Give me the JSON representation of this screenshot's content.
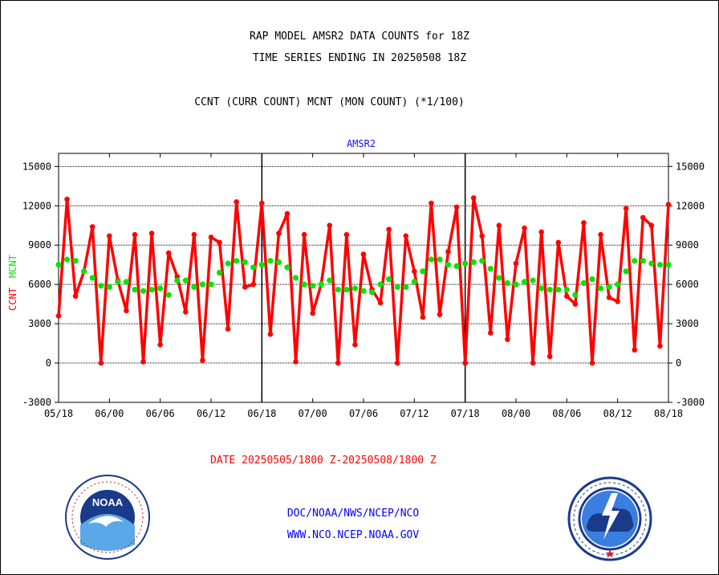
{
  "header": {
    "title_line1": "RAP MODEL AMSR2 DATA COUNTS for 18Z",
    "title_line2": "TIME SERIES ENDING IN 20250508 18Z",
    "subtitle": "CCNT (CURR COUNT) MCNT (MON COUNT) (*1/100)"
  },
  "date_range": "DATE 20250505/1800 Z-20250508/1800 Z",
  "footer": {
    "line1": "DOC/NOAA/NWS/NCEP/NCO",
    "line2": "WWW.NCO.NCEP.NOAA.GOV"
  },
  "logos": {
    "left": "noaa-logo",
    "right": "national-weather-service-logo"
  },
  "colors": {
    "ccnt": "#ff0000",
    "mcnt": "#00e600",
    "label": "#1010ff",
    "grid": "#000000"
  },
  "chart_data": {
    "type": "line",
    "title": "AMSR2",
    "ylabel_left": [
      "CCNT",
      "MCNT"
    ],
    "ylim": [
      -3000,
      16000
    ],
    "yticks": [
      -3000,
      0,
      3000,
      6000,
      9000,
      12000,
      15000
    ],
    "yticklabels": [
      "-3000",
      "0",
      "3000",
      "6000",
      "9000",
      "12000",
      "15000"
    ],
    "xlim": [
      0,
      72
    ],
    "xticks": [
      0,
      6,
      12,
      18,
      24,
      30,
      36,
      42,
      48,
      54,
      60,
      66,
      72
    ],
    "xticklabels": [
      "05/18",
      "06/00",
      "06/06",
      "06/12",
      "06/18",
      "07/00",
      "07/06",
      "07/12",
      "07/18",
      "08/00",
      "08/06",
      "08/12",
      "08/18"
    ],
    "day_separators": [
      24,
      48
    ],
    "grid": true,
    "series": [
      {
        "name": "CCNT",
        "color": "#ff0000",
        "values": [
          3600,
          12500,
          5100,
          7000,
          10400,
          0,
          9700,
          6300,
          4000,
          9800,
          100,
          9900,
          1400,
          8400,
          6600,
          3900,
          9800,
          200,
          9600,
          9200,
          2600,
          12300,
          5800,
          6000,
          12200,
          2200,
          9900,
          11400,
          100,
          9800,
          3800,
          6000,
          10500,
          0,
          9800,
          1400,
          8300,
          5600,
          4600,
          10200,
          0,
          9700,
          7000,
          3500,
          12200,
          3700,
          8500,
          11900,
          0,
          12600,
          9700,
          2300,
          10500,
          1800,
          7600,
          10300,
          0,
          10000,
          500,
          9200,
          5100,
          4500,
          10700,
          0,
          9800,
          5000,
          4700,
          11800,
          1000,
          11100,
          10500,
          1300,
          12100
        ]
      },
      {
        "name": "MCNT",
        "color": "#00e600",
        "values": [
          7500,
          7900,
          7800,
          7000,
          6500,
          5900,
          5800,
          6200,
          6200,
          5600,
          5500,
          5600,
          5700,
          5200,
          6300,
          6300,
          5800,
          6000,
          6000,
          6900,
          7600,
          7800,
          7700,
          7300,
          7500,
          7800,
          7700,
          7300,
          6500,
          6000,
          5900,
          6000,
          6300,
          5600,
          5600,
          5700,
          5500,
          5400,
          6000,
          6400,
          5800,
          5800,
          6200,
          7000,
          7900,
          7900,
          7500,
          7400,
          7600,
          7700,
          7800,
          7200,
          6500,
          6100,
          6000,
          6200,
          6300,
          5700,
          5600,
          5600,
          5600,
          5200,
          6100,
          6400,
          5700,
          5800,
          6000,
          7000,
          7800,
          7800,
          7600,
          7500,
          7500
        ]
      }
    ]
  }
}
